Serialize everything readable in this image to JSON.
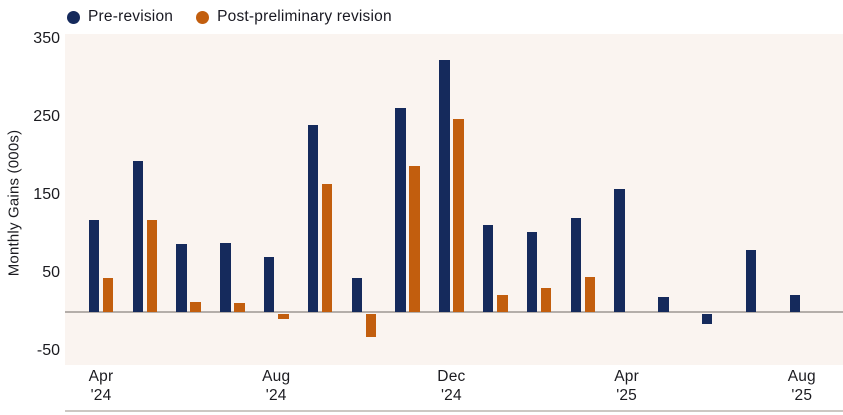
{
  "legend": {
    "items": [
      {
        "label": "Pre-revision",
        "color": "#152a5c"
      },
      {
        "label": "Post-preliminary revision",
        "color": "#c25e0e"
      }
    ]
  },
  "y_axis": {
    "title": "Monthly Gains (000s)",
    "ticks": [
      350,
      250,
      150,
      50,
      -50
    ]
  },
  "x_axis": {
    "labels": [
      {
        "month": "Apr",
        "year": "'24"
      },
      {
        "month": "Aug",
        "year": "'24"
      },
      {
        "month": "Dec",
        "year": "'24"
      },
      {
        "month": "Apr",
        "year": "'25"
      },
      {
        "month": "Aug",
        "year": "'25"
      }
    ],
    "label_pair_indices": [
      0,
      4,
      8,
      12,
      16
    ]
  },
  "chart_data": {
    "type": "bar",
    "title": "",
    "xlabel": "",
    "ylabel": "Monthly Gains (000s)",
    "ylim": [
      -50,
      350
    ],
    "yticks": [
      350,
      250,
      150,
      50,
      -50
    ],
    "grid": false,
    "legend_position": "top-left",
    "plot_background": "#faf4f0",
    "categories": [
      "Apr '24",
      "May '24",
      "Jun '24",
      "Jul '24",
      "Aug '24",
      "Sep '24",
      "Oct '24",
      "Nov '24",
      "Dec '24",
      "Jan '25",
      "Feb '25",
      "Mar '25",
      "Apr '25",
      "May '25",
      "Jun '25",
      "Jul '25",
      "Aug '25"
    ],
    "x_tick_labels_shown": [
      "Apr '24",
      "Aug '24",
      "Dec '24",
      "Apr '25",
      "Aug '25"
    ],
    "series": [
      {
        "name": "Pre-revision",
        "color": "#152a5c",
        "values": [
          118,
          193,
          87,
          88,
          71,
          240,
          44,
          261,
          323,
          111,
          102,
          120,
          158,
          19,
          -13,
          79,
          22
        ]
      },
      {
        "name": "Post-preliminary revision",
        "color": "#c25e0e",
        "values": [
          43,
          118,
          13,
          12,
          -6,
          164,
          -29,
          187,
          247,
          22,
          31,
          45,
          null,
          null,
          null,
          null,
          null
        ]
      }
    ]
  }
}
